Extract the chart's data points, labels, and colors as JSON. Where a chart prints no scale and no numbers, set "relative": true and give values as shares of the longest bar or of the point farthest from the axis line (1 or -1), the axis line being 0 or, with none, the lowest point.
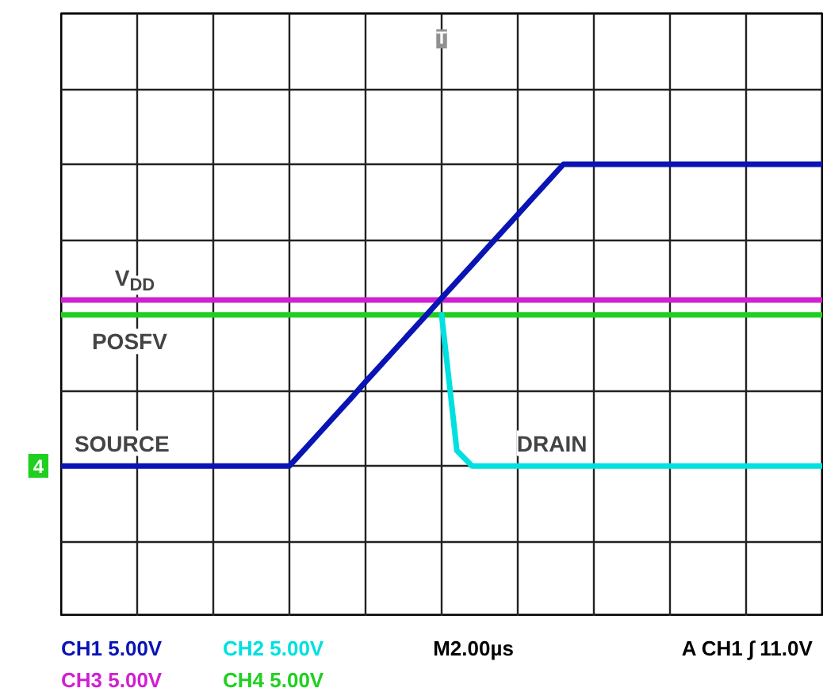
{
  "chart_data": {
    "type": "line",
    "relative": true,
    "categories": [
      null,
      null,
      null,
      null,
      null,
      null,
      null,
      null,
      null,
      null,
      null,
      null,
      null,
      null,
      null,
      null,
      null,
      null,
      null,
      null,
      null,
      null,
      null,
      null,
      null,
      null,
      null,
      null,
      null,
      null,
      null,
      null,
      null,
      null,
      null,
      null,
      null,
      null,
      null,
      null,
      null,
      null,
      null,
      null,
      null,
      null,
      null,
      null,
      null,
      null,
      null
    ],
    "series": [
      {
        "name": "CH1 5.00V",
        "color": "#0a14b4",
        "values": [
          0.333,
          0.333,
          0.333,
          0.333,
          0.333,
          0.333,
          0.333,
          0.333,
          0.333,
          0.333,
          0.333,
          0.333,
          0.333,
          0.333,
          0.333,
          0.333,
          0.37,
          0.407,
          0.444,
          0.481,
          0.519,
          0.556,
          0.593,
          0.63,
          0.667,
          0.704,
          0.741,
          0.778,
          0.815,
          0.852,
          0.889,
          0.926,
          0.963,
          1,
          1,
          1,
          1,
          1,
          1,
          1,
          1,
          1,
          1,
          1,
          1,
          1,
          1,
          1,
          1,
          1,
          1
        ]
      },
      {
        "name": "CH2 5.00V",
        "color": "#00e0e0",
        "values": [
          null,
          null,
          null,
          null,
          null,
          null,
          null,
          null,
          null,
          null,
          null,
          null,
          null,
          null,
          null,
          null,
          null,
          null,
          null,
          null,
          null,
          null,
          null,
          null,
          null,
          0.667,
          0.367,
          0.333,
          0.333,
          0.333,
          0.333,
          0.333,
          0.333,
          0.333,
          0.333,
          0.333,
          0.333,
          0.333,
          0.333,
          0.333,
          0.333,
          0.333,
          0.333,
          0.333,
          0.333,
          0.333,
          0.333,
          0.333,
          0.333,
          0.333,
          0.333
        ]
      },
      {
        "name": "CH3 5.00V",
        "color": "#d020d0",
        "values": [
          0.7,
          0.7,
          0.7,
          0.7,
          0.7,
          0.7,
          0.7,
          0.7,
          0.7,
          0.7,
          0.7,
          0.7,
          0.7,
          0.7,
          0.7,
          0.7,
          0.7,
          0.7,
          0.7,
          0.7,
          0.7,
          0.7,
          0.7,
          0.7,
          0.7,
          0.7,
          0.7,
          0.7,
          0.7,
          0.7,
          0.7,
          0.7,
          0.7,
          0.7,
          0.7,
          0.7,
          0.7,
          0.7,
          0.7,
          0.7,
          0.7,
          0.7,
          0.7,
          0.7,
          0.7,
          0.7,
          0.7,
          0.7,
          0.7,
          0.7,
          0.7
        ]
      },
      {
        "name": "CH4 5.00V",
        "color": "#20d020",
        "values": [
          0.667,
          0.667,
          0.667,
          0.667,
          0.667,
          0.667,
          0.667,
          0.667,
          0.667,
          0.667,
          0.667,
          0.667,
          0.667,
          0.667,
          0.667,
          0.667,
          0.667,
          0.667,
          0.667,
          0.667,
          0.667,
          0.667,
          0.667,
          0.667,
          0.667,
          0.667,
          0.667,
          0.667,
          0.667,
          0.667,
          0.667,
          0.667,
          0.667,
          0.667,
          0.667,
          0.667,
          0.667,
          0.667,
          0.667,
          0.667,
          0.667,
          0.667,
          0.667,
          0.667,
          0.667,
          0.667,
          0.667,
          0.667,
          0.667,
          0.667,
          0.667
        ]
      }
    ],
    "grid": true,
    "line_style": "solid",
    "annotations": [
      "V$_{DD}$",
      "POSFV",
      "SOURCE",
      "DRAIN",
      "4",
      "T",
      "M2.00µs",
      "A  CH1 ∫ 11.0V"
    ]
  }
}
